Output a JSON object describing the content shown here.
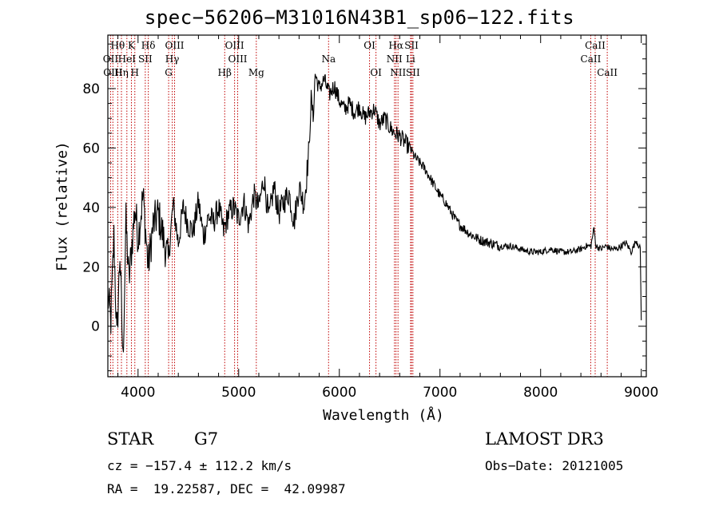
{
  "chart_data": {
    "type": "line",
    "title": "spec−56206−M31016N43B1_sp06−122.fits",
    "xlabel": "Wavelength (Å)",
    "ylabel": "Flux (relative)",
    "xlim": [
      3700,
      9050
    ],
    "ylim": [
      -17,
      98
    ],
    "xticks": [
      4000,
      5000,
      6000,
      7000,
      8000,
      9000
    ],
    "xtick_labels": [
      "4000",
      "5000",
      "6000",
      "7000",
      "8000",
      "9000"
    ],
    "yticks": [
      0,
      20,
      40,
      60,
      80
    ],
    "ytick_labels": [
      "0",
      "20",
      "40",
      "60",
      "80"
    ],
    "series": [
      {
        "name": "flux",
        "x": [
          3700,
          3730,
          3760,
          3790,
          3820,
          3850,
          3880,
          3910,
          3940,
          3970,
          4000,
          4050,
          4100,
          4150,
          4200,
          4250,
          4300,
          4330,
          4350,
          4400,
          4450,
          4500,
          4550,
          4600,
          4650,
          4700,
          4750,
          4800,
          4850,
          4900,
          4950,
          5000,
          5050,
          5100,
          5150,
          5200,
          5250,
          5300,
          5350,
          5400,
          5450,
          5500,
          5550,
          5600,
          5650,
          5700,
          5720,
          5740,
          5760,
          5800,
          5850,
          5900,
          5950,
          6000,
          6050,
          6100,
          6150,
          6200,
          6250,
          6300,
          6350,
          6400,
          6450,
          6500,
          6550,
          6600,
          6650,
          6700,
          6750,
          6800,
          6850,
          6900,
          6950,
          7000,
          7050,
          7100,
          7150,
          7200,
          7300,
          7400,
          7500,
          7600,
          7700,
          7800,
          7900,
          8000,
          8100,
          8200,
          8300,
          8400,
          8450,
          8500,
          8530,
          8550,
          8600,
          8650,
          8700,
          8750,
          8800,
          8850,
          8900,
          8950,
          8990,
          9000
        ],
        "y": [
          10,
          2,
          30,
          -5,
          25,
          -12,
          35,
          15,
          28,
          40,
          30,
          44,
          20,
          34,
          38,
          30,
          22,
          34,
          41,
          28,
          40,
          34,
          32,
          42,
          30,
          37,
          35,
          40,
          32,
          38,
          40,
          36,
          42,
          34,
          44,
          40,
          50,
          36,
          47,
          38,
          42,
          45,
          35,
          47,
          41,
          60,
          77,
          70,
          85,
          80,
          83,
          78,
          81,
          76,
          73,
          75,
          72,
          74,
          70,
          72,
          73,
          68,
          70,
          67,
          65,
          64,
          62,
          60,
          57,
          55,
          53,
          50,
          47,
          44,
          42,
          39,
          36,
          34,
          31,
          29,
          28,
          27,
          27,
          26,
          25,
          25,
          26,
          25,
          25,
          26,
          27,
          27,
          33,
          27,
          26,
          27,
          26,
          26,
          27,
          28,
          25,
          29,
          26,
          2
        ]
      }
    ],
    "line_markers": [
      {
        "label": "Hθ",
        "wavelength": 3798,
        "row": 1
      },
      {
        "label": "K",
        "wavelength": 3934,
        "row": 1
      },
      {
        "label": "Hδ",
        "wavelength": 4102,
        "row": 1
      },
      {
        "label": "OIII",
        "wavelength": 4363,
        "row": 1
      },
      {
        "label": "OIII",
        "wavelength": 4959,
        "row": 1
      },
      {
        "label": "OI",
        "wavelength": 6300,
        "row": 1
      },
      {
        "label": "Hα",
        "wavelength": 6563,
        "row": 1
      },
      {
        "label": "SII",
        "wavelength": 6717,
        "row": 1
      },
      {
        "label": "CaII",
        "wavelength": 8542,
        "row": 1
      },
      {
        "label": "OII",
        "wavelength": 3727,
        "row": 2
      },
      {
        "label": "HeI",
        "wavelength": 3889,
        "row": 2
      },
      {
        "label": "SII",
        "wavelength": 4072,
        "row": 2
      },
      {
        "label": "Hγ",
        "wavelength": 4340,
        "row": 2
      },
      {
        "label": "OIII",
        "wavelength": 4990,
        "row": 2
      },
      {
        "label": "Na",
        "wavelength": 5893,
        "row": 2
      },
      {
        "label": "NII",
        "wavelength": 6548,
        "row": 2
      },
      {
        "label": "Li",
        "wavelength": 6708,
        "row": 2
      },
      {
        "label": "CaII",
        "wavelength": 8498,
        "row": 2
      },
      {
        "label": "OIII",
        "wavelength": 3750,
        "row": 3
      },
      {
        "label": "Hη",
        "wavelength": 3835,
        "row": 3
      },
      {
        "label": "H",
        "wavelength": 3968,
        "row": 3
      },
      {
        "label": "G",
        "wavelength": 4304,
        "row": 3
      },
      {
        "label": "Hβ",
        "wavelength": 4861,
        "row": 3
      },
      {
        "label": "Mg",
        "wavelength": 5175,
        "row": 3
      },
      {
        "label": "OI",
        "wavelength": 6364,
        "row": 3
      },
      {
        "label": "NII",
        "wavelength": 6583,
        "row": 3
      },
      {
        "label": "SII",
        "wavelength": 6731,
        "row": 3
      },
      {
        "label": "CaII",
        "wavelength": 8662,
        "row": 3
      }
    ]
  },
  "info": {
    "class": "STAR",
    "subclass": "G7",
    "survey": "LAMOST DR3",
    "cz": "cz = −157.4 ± 112.2 km/s",
    "obs_date": "Obs−Date: 20121005",
    "radec": "RA =  19.22587, DEC =  42.09987"
  },
  "colors": {
    "axis": "#000000",
    "spectrum": "#000000",
    "marker_line": "#c00000"
  }
}
